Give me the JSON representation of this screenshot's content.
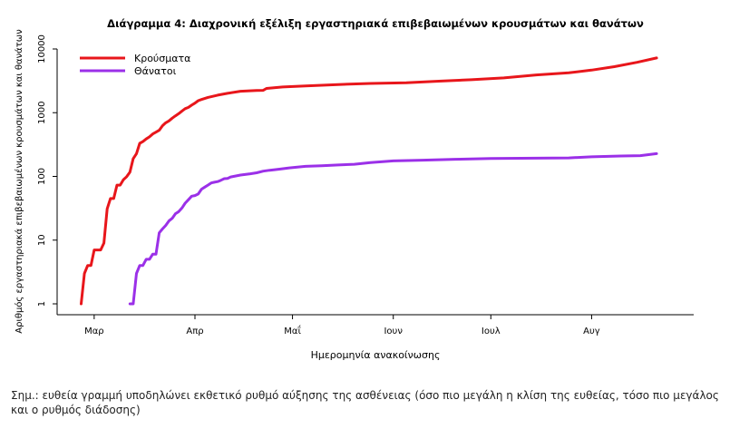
{
  "chart_data": {
    "type": "line",
    "title": "Διάγραμμα 4: Διαχρονική εξέλιξη εργαστηριακά επιβεβαιωμένων κρουσμάτων και θανάτων",
    "xlabel": "Ημερομηνία ανακοίνωσης",
    "ylabel": "Αριθμός εργαστηριακά επιβεβαιωμένων κρουσμάτων και θανάτων",
    "y_scale": "log",
    "ylim": [
      1,
      10000
    ],
    "y_ticks": [
      {
        "value": 1,
        "label": "1"
      },
      {
        "value": 10,
        "label": "10"
      },
      {
        "value": 100,
        "label": "100"
      },
      {
        "value": 1000,
        "label": "1000"
      },
      {
        "value": 10000,
        "label": "10000"
      }
    ],
    "x_ticks": [
      {
        "date": "2020-03-01",
        "label": "Μαρ"
      },
      {
        "date": "2020-04-01",
        "label": "Απρ"
      },
      {
        "date": "2020-05-01",
        "label": "Μαΐ"
      },
      {
        "date": "2020-06-01",
        "label": "Ιουν"
      },
      {
        "date": "2020-07-01",
        "label": "Ιουλ"
      },
      {
        "date": "2020-08-01",
        "label": "Αυγ"
      }
    ],
    "xlim": [
      "2020-02-20",
      "2020-08-31"
    ],
    "legend_position": "top-left",
    "grid": false,
    "series": [
      {
        "name": "Κρούσματα",
        "color": "#e8161b",
        "points": [
          [
            "2020-02-26",
            1
          ],
          [
            "2020-02-27",
            3
          ],
          [
            "2020-02-28",
            4
          ],
          [
            "2020-02-29",
            4
          ],
          [
            "2020-03-01",
            7
          ],
          [
            "2020-03-02",
            7
          ],
          [
            "2020-03-03",
            7
          ],
          [
            "2020-03-04",
            9
          ],
          [
            "2020-03-05",
            31
          ],
          [
            "2020-03-06",
            45
          ],
          [
            "2020-03-07",
            45
          ],
          [
            "2020-03-08",
            73
          ],
          [
            "2020-03-09",
            73
          ],
          [
            "2020-03-10",
            89
          ],
          [
            "2020-03-11",
            99
          ],
          [
            "2020-03-12",
            117
          ],
          [
            "2020-03-13",
            190
          ],
          [
            "2020-03-14",
            228
          ],
          [
            "2020-03-15",
            331
          ],
          [
            "2020-03-16",
            352
          ],
          [
            "2020-03-17",
            387
          ],
          [
            "2020-03-18",
            418
          ],
          [
            "2020-03-19",
            464
          ],
          [
            "2020-03-20",
            495
          ],
          [
            "2020-03-21",
            530
          ],
          [
            "2020-03-22",
            624
          ],
          [
            "2020-03-23",
            695
          ],
          [
            "2020-03-24",
            743
          ],
          [
            "2020-03-25",
            821
          ],
          [
            "2020-03-26",
            892
          ],
          [
            "2020-03-27",
            966
          ],
          [
            "2020-03-28",
            1061
          ],
          [
            "2020-03-29",
            1156
          ],
          [
            "2020-03-30",
            1212
          ],
          [
            "2020-03-31",
            1314
          ],
          [
            "2020-04-01",
            1415
          ],
          [
            "2020-04-02",
            1544
          ],
          [
            "2020-04-03",
            1613
          ],
          [
            "2020-04-05",
            1735
          ],
          [
            "2020-04-08",
            1884
          ],
          [
            "2020-04-11",
            2011
          ],
          [
            "2020-04-15",
            2170
          ],
          [
            "2020-04-20",
            2235
          ],
          [
            "2020-04-22",
            2245
          ],
          [
            "2020-04-23",
            2401
          ],
          [
            "2020-04-28",
            2534
          ],
          [
            "2020-05-05",
            2632
          ],
          [
            "2020-05-15",
            2770
          ],
          [
            "2020-05-25",
            2878
          ],
          [
            "2020-06-05",
            2952
          ],
          [
            "2020-06-15",
            3121
          ],
          [
            "2020-06-25",
            3287
          ],
          [
            "2020-07-05",
            3519
          ],
          [
            "2020-07-15",
            3910
          ],
          [
            "2020-07-25",
            4227
          ],
          [
            "2020-08-01",
            4662
          ],
          [
            "2020-08-08",
            5270
          ],
          [
            "2020-08-15",
            6177
          ],
          [
            "2020-08-21",
            7222
          ]
        ]
      },
      {
        "name": "Θάνατοι",
        "color": "#9b30e8",
        "points": [
          [
            "2020-03-12",
            1
          ],
          [
            "2020-03-13",
            1
          ],
          [
            "2020-03-14",
            3
          ],
          [
            "2020-03-15",
            4
          ],
          [
            "2020-03-16",
            4
          ],
          [
            "2020-03-17",
            5
          ],
          [
            "2020-03-18",
            5
          ],
          [
            "2020-03-19",
            6
          ],
          [
            "2020-03-20",
            6
          ],
          [
            "2020-03-21",
            13
          ],
          [
            "2020-03-22",
            15
          ],
          [
            "2020-03-23",
            17
          ],
          [
            "2020-03-24",
            20
          ],
          [
            "2020-03-25",
            22
          ],
          [
            "2020-03-26",
            26
          ],
          [
            "2020-03-27",
            28
          ],
          [
            "2020-03-28",
            32
          ],
          [
            "2020-03-29",
            38
          ],
          [
            "2020-03-30",
            43
          ],
          [
            "2020-03-31",
            49
          ],
          [
            "2020-04-01",
            50
          ],
          [
            "2020-04-02",
            53
          ],
          [
            "2020-04-03",
            63
          ],
          [
            "2020-04-04",
            68
          ],
          [
            "2020-04-05",
            73
          ],
          [
            "2020-04-06",
            79
          ],
          [
            "2020-04-07",
            81
          ],
          [
            "2020-04-08",
            83
          ],
          [
            "2020-04-09",
            87
          ],
          [
            "2020-04-10",
            92
          ],
          [
            "2020-04-11",
            93
          ],
          [
            "2020-04-12",
            98
          ],
          [
            "2020-04-15",
            105
          ],
          [
            "2020-04-18",
            110
          ],
          [
            "2020-04-20",
            114
          ],
          [
            "2020-04-22",
            121
          ],
          [
            "2020-04-24",
            125
          ],
          [
            "2020-04-27",
            130
          ],
          [
            "2020-04-30",
            136
          ],
          [
            "2020-05-05",
            144
          ],
          [
            "2020-05-10",
            147
          ],
          [
            "2020-05-15",
            151
          ],
          [
            "2020-05-20",
            155
          ],
          [
            "2020-05-25",
            165
          ],
          [
            "2020-06-01",
            175
          ],
          [
            "2020-06-10",
            180
          ],
          [
            "2020-06-20",
            186
          ],
          [
            "2020-07-01",
            191
          ],
          [
            "2020-07-15",
            193
          ],
          [
            "2020-07-25",
            195
          ],
          [
            "2020-08-01",
            203
          ],
          [
            "2020-08-10",
            209
          ],
          [
            "2020-08-16",
            212
          ],
          [
            "2020-08-21",
            228
          ]
        ]
      }
    ]
  },
  "note": "Σημ.: ευθεία γραμμή υποδηλώνει εκθετικό ρυθμό αύξησης της ασθένειας (όσο πιο μεγάλη η κλίση της ευθείας, τόσο πιο μεγάλος και ο ρυθμός διάδοσης)"
}
